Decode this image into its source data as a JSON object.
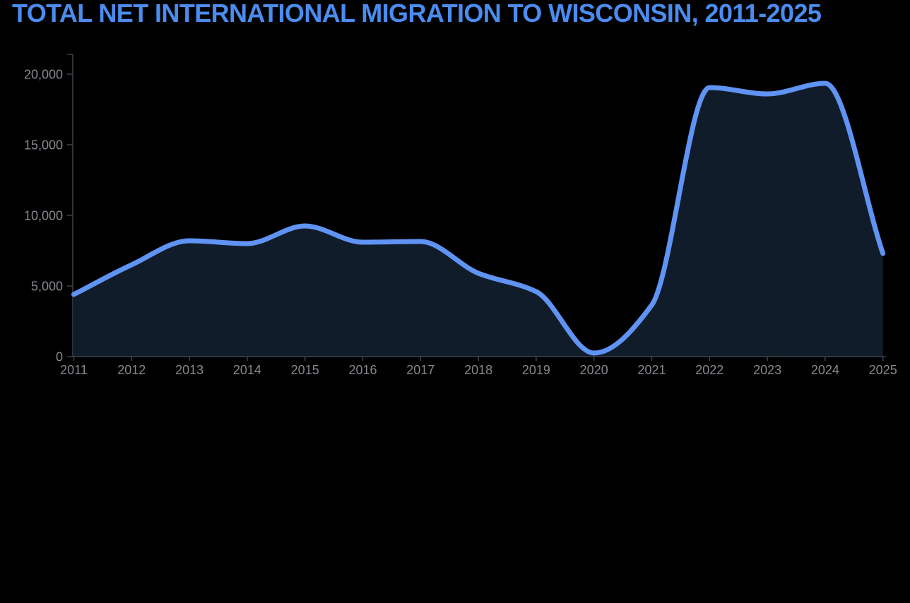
{
  "chart_data": {
    "type": "area",
    "title": "TOTAL NET INTERNATIONAL MIGRATION TO WISCONSIN, 2011-2025",
    "x": [
      2011,
      2012,
      2013,
      2014,
      2015,
      2016,
      2017,
      2018,
      2019,
      2020,
      2021,
      2022,
      2023,
      2024,
      2025
    ],
    "values": [
      4400,
      6500,
      8200,
      8000,
      9250,
      8100,
      8150,
      5900,
      4600,
      250,
      3650,
      19050,
      18600,
      19350,
      7300
    ],
    "xtick_labels": [
      "2011",
      "2012",
      "2013",
      "2014",
      "2015",
      "2016",
      "2017",
      "2018",
      "2019",
      "2020",
      "2021",
      "2022",
      "2023",
      "2024",
      "2025"
    ],
    "yticks": [
      0,
      5000,
      10000,
      15000,
      20000
    ],
    "ytick_labels": [
      "0",
      "5,000",
      "10,000",
      "15,000",
      "20,000"
    ],
    "xlabel": "",
    "ylabel": "",
    "ylim": [
      0,
      21400
    ],
    "grid": false,
    "legend": false
  },
  "colors": {
    "background": "#000000",
    "title": "#4a8cf0",
    "line": "#5f93f4",
    "area_fill": "#111c2a",
    "axis": "#3d434b",
    "tick_label": "#85898e"
  }
}
